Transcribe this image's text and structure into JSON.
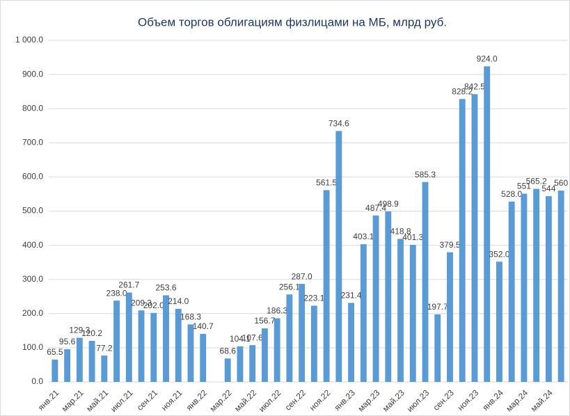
{
  "chart_data": {
    "type": "bar",
    "title": "Объем  торгов облигациям  физлицами на МБ, млрд руб.",
    "categories": [
      "янв.21",
      null,
      "мар.21",
      null,
      "май.21",
      null,
      "июл.21",
      null,
      "сен.21",
      null,
      "ноя.21",
      null,
      "янв.22",
      null,
      "мар.22",
      null,
      "май.22",
      null,
      "июл.22",
      null,
      "сен.22",
      null,
      "ноя.22",
      null,
      "янв.23",
      null,
      "мар.23",
      null,
      "май.23",
      null,
      "июл.23",
      null,
      "сен.23",
      null,
      "ноя.23",
      null,
      "янв.24",
      null,
      "мар.24",
      null,
      "май.24",
      null
    ],
    "values": [
      65.5,
      95.6,
      129.3,
      120.2,
      77.2,
      238.0,
      261.7,
      209.3,
      202.0,
      253.6,
      214.0,
      168.3,
      140.7,
      null,
      68.6,
      104.1,
      107.6,
      156.7,
      186.3,
      256.1,
      287.0,
      223.1,
      561.5,
      734.6,
      231.4,
      403.1,
      487.4,
      498.9,
      418.8,
      401.3,
      585.3,
      197.7,
      379.5,
      828.2,
      842.5,
      924.0,
      352.0,
      528.0,
      551,
      565.2,
      544,
      560
    ],
    "value_labels": [
      "65.5",
      "95.6",
      "129.3",
      "120.2",
      "77.2",
      "238.0",
      "261.7",
      "209.3",
      "202.0",
      "253.6",
      "214.0",
      "168.3",
      "140.7",
      null,
      "68.6",
      "104.1",
      "107.6",
      "156.7",
      "186.3",
      "256.1",
      "287.0",
      "223.1",
      "561.5",
      "734.6",
      "231.4",
      "403.1",
      "487.4",
      "498.9",
      "418.8",
      "401.3",
      "585.3",
      "197.7",
      "379.5",
      "828.2",
      "842.5",
      "924.0",
      "352.0",
      "528.0",
      "551",
      "565.2",
      "544",
      "560"
    ],
    "color": "#5b9bd5",
    "ylim": [
      0,
      1000
    ],
    "yticks": [
      {
        "value": 0,
        "label": "0.0"
      },
      {
        "value": 100,
        "label": "100.0"
      },
      {
        "value": 200,
        "label": "200.0"
      },
      {
        "value": 300,
        "label": "300.0"
      },
      {
        "value": 400,
        "label": "400.0"
      },
      {
        "value": 500,
        "label": "500.0"
      },
      {
        "value": 600,
        "label": "600.0"
      },
      {
        "value": 700,
        "label": "700.0"
      },
      {
        "value": 800,
        "label": "800.0"
      },
      {
        "value": 900,
        "label": "900.0"
      },
      {
        "value": 1000,
        "label": "1 000.0"
      }
    ],
    "grid": true
  }
}
